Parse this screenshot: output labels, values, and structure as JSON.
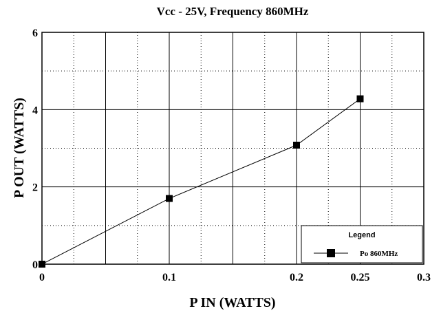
{
  "chart_data": {
    "type": "line",
    "title": "Vcc - 25V,  Frequency 860MHz",
    "xlabel": "P IN (WATTS)",
    "ylabel": "P OUT (WATTS)",
    "xlim": [
      0,
      0.3
    ],
    "ylim": [
      0,
      6
    ],
    "x_ticks": [
      0,
      0.1,
      0.2,
      0.25,
      0.3
    ],
    "x_tick_labels": [
      "0",
      "0.1",
      "0.2",
      "0.25",
      "0.3"
    ],
    "y_ticks": [
      0,
      2,
      4,
      6
    ],
    "y_tick_labels": [
      "0",
      "2",
      "4",
      "6"
    ],
    "x_major_gridlines": [
      0.05,
      0.1,
      0.15,
      0.2,
      0.25
    ],
    "x_minor_gridlines": [
      0.025,
      0.075,
      0.125,
      0.175,
      0.225,
      0.275
    ],
    "y_major_gridlines": [
      2,
      4
    ],
    "y_minor_gridlines": [
      1,
      3,
      5
    ],
    "grid": true,
    "legend": {
      "title": "Legend",
      "position": "bottom-right"
    },
    "series": [
      {
        "name": "Po 860MHz",
        "x": [
          0,
          0.1,
          0.2,
          0.25
        ],
        "y": [
          0,
          1.7,
          3.08,
          4.28
        ],
        "marker": "square",
        "color": "#000000"
      }
    ]
  }
}
